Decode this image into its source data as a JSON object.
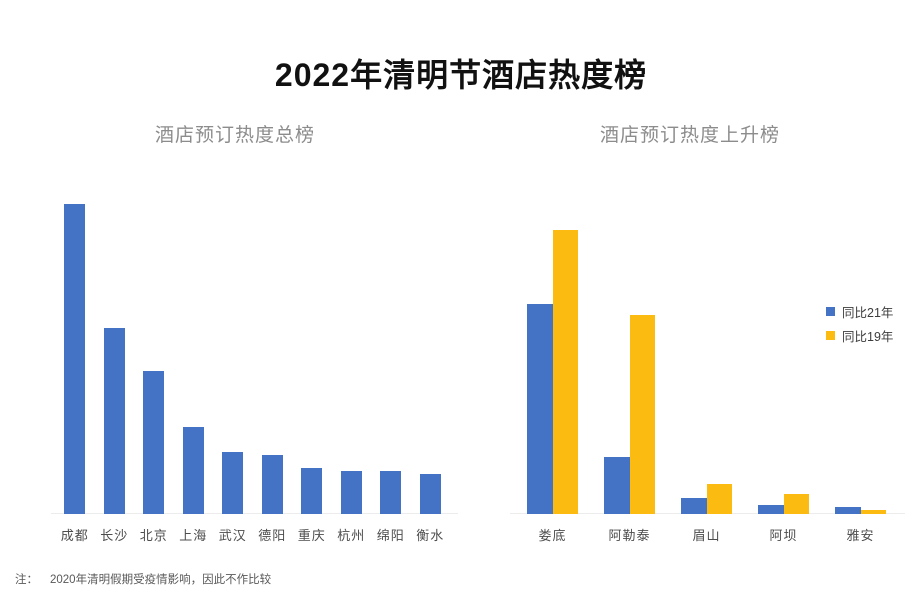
{
  "page": {
    "title": "2022年清明节酒店热度榜",
    "note_prefix": "注：",
    "note_text": "2020年清明假期受疫情影响，因此不作比较"
  },
  "colors": {
    "bar_blue": "#4472C4",
    "bar_gold": "#FBBB10",
    "title_text": "#111111",
    "subtitle_text": "#8c8c8c",
    "axis_label_text": "#4d4d4d",
    "baseline": "#ececec"
  },
  "chart_data": [
    {
      "id": "total-rank",
      "type": "bar",
      "title": "酒店预订热度总榜",
      "categories": [
        "成都",
        "长沙",
        "北京",
        "上海",
        "武汉",
        "德阳",
        "重庆",
        "杭州",
        "绵阳",
        "衡水"
      ],
      "values": [
        100,
        60,
        46,
        28,
        20,
        19,
        15,
        14,
        14,
        13
      ],
      "color": "#4472C4",
      "ylim": [
        0,
        100
      ],
      "value_scale": "relative heat index, top city = 100 (no numeric axis shown)",
      "axis": {
        "y_visible": false,
        "gridlines": false,
        "baseline_visible": true
      },
      "legend_position": "none"
    },
    {
      "id": "rising-rank",
      "type": "bar",
      "grouped": true,
      "title": "酒店预订热度上升榜",
      "categories": [
        "娄底",
        "阿勒泰",
        "眉山",
        "阿坝",
        "雅安"
      ],
      "series": [
        {
          "name": "同比21年",
          "color": "#4472C4",
          "values": [
            74,
            20,
            5.5,
            3,
            2.5
          ]
        },
        {
          "name": "同比19年",
          "color": "#FBBB10",
          "values": [
            100,
            70,
            10.5,
            7,
            1.5
          ]
        }
      ],
      "ylim": [
        0,
        100
      ],
      "value_scale": "relative rise index, top bar = 100 (no numeric axis shown)",
      "axis": {
        "y_visible": false,
        "gridlines": false,
        "baseline_visible": true
      },
      "legend_position": "right"
    }
  ]
}
